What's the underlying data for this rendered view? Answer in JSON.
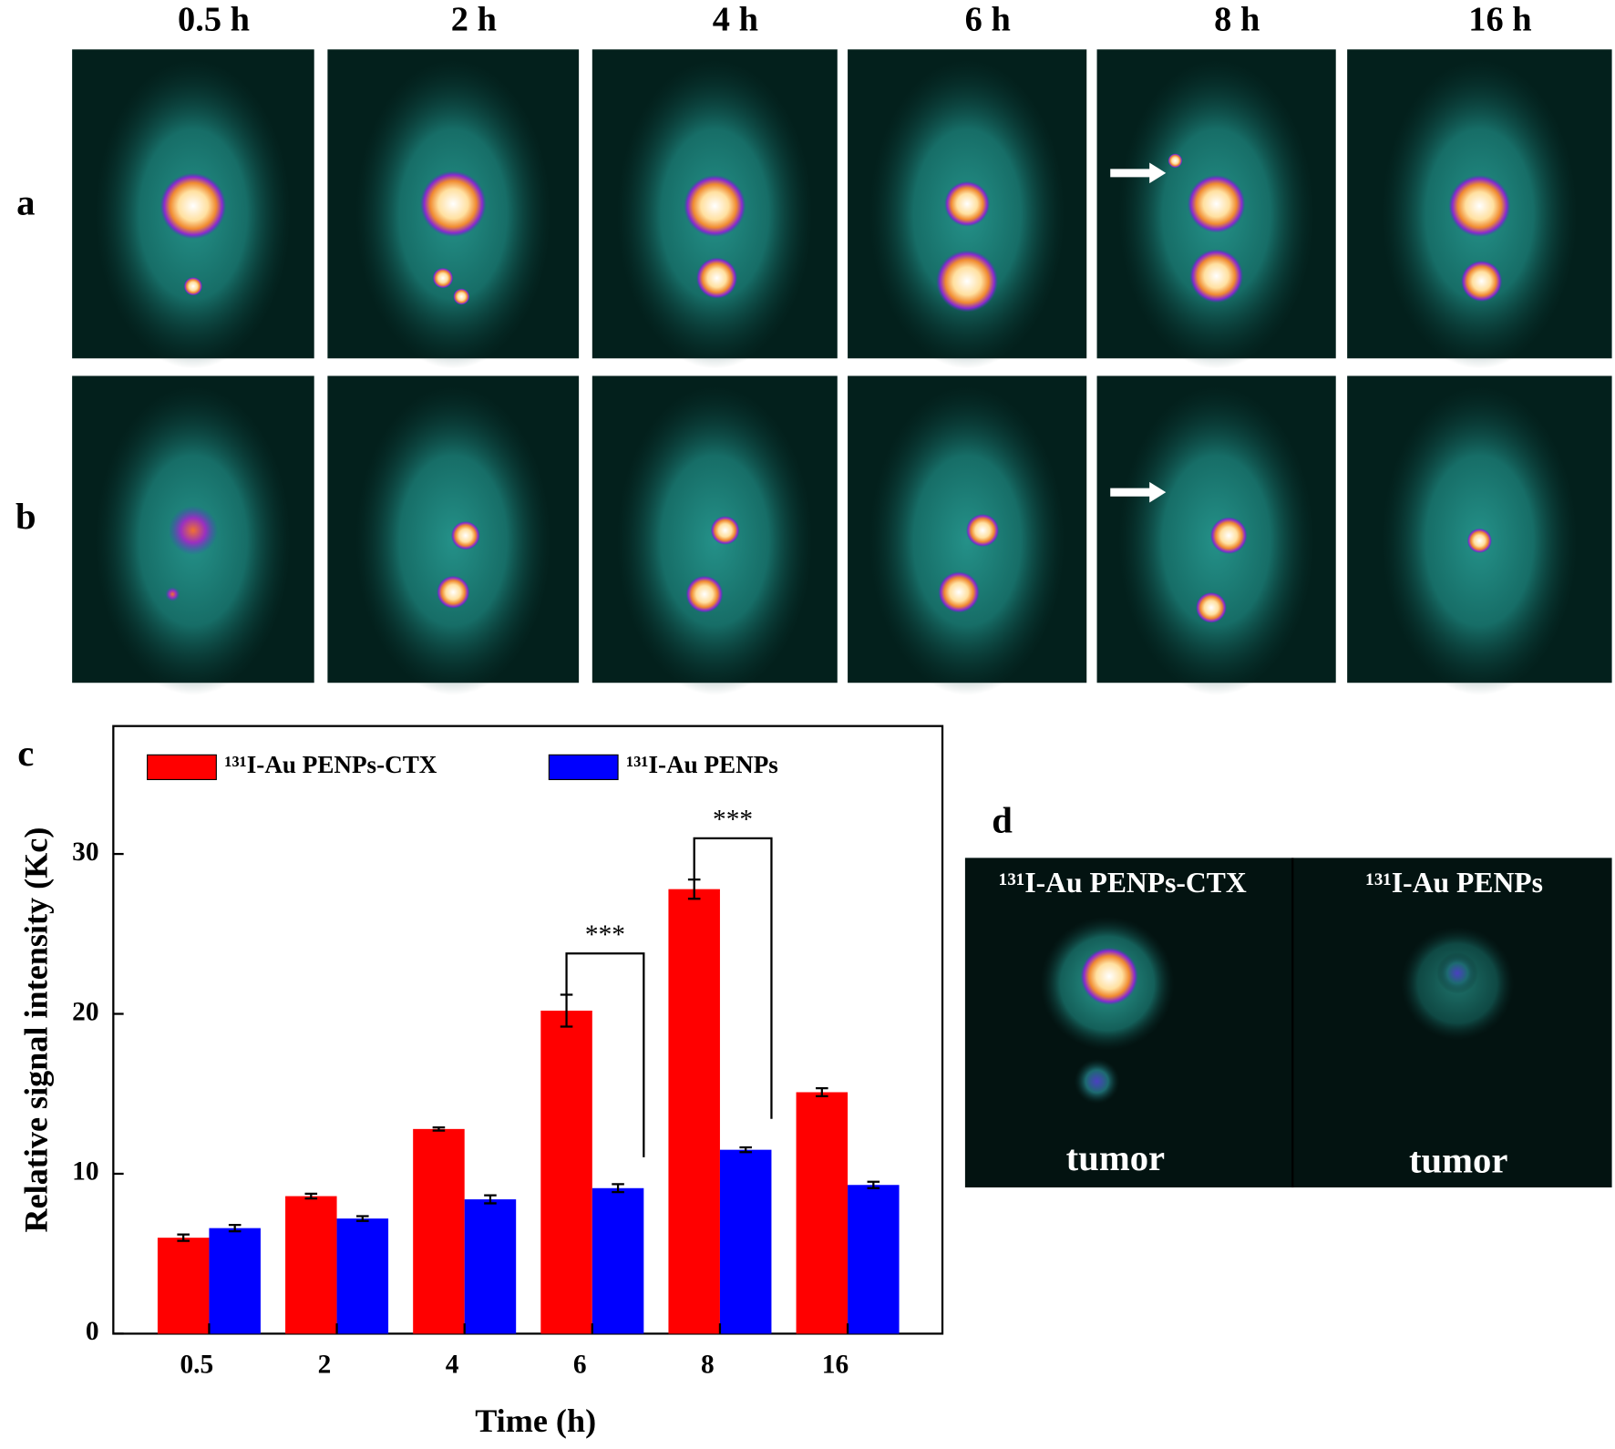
{
  "header": {
    "times": [
      "0.5 h",
      "2 h",
      "4 h",
      "6 h",
      "8 h",
      "16 h"
    ]
  },
  "panels": {
    "a": "a",
    "b": "b",
    "c": "c",
    "d": "d"
  },
  "panel_d": {
    "left_title": "¹³¹I-Au PENPs-CTX",
    "right_title": "¹³¹I-Au PENPs",
    "left_label": "tumor",
    "right_label": "tumor"
  },
  "chart_data": {
    "type": "bar",
    "x_label": "Time (h)",
    "y_label": "Relative signal intensity (Kc)",
    "categories": [
      "0.5",
      "2",
      "4",
      "6",
      "8",
      "16"
    ],
    "series": [
      {
        "name": "¹³¹I-Au PENPs-CTX",
        "color": "#ff0000",
        "values": [
          6.0,
          8.6,
          12.8,
          20.2,
          27.8,
          15.1
        ],
        "errors": [
          0.2,
          0.15,
          0.1,
          1.0,
          0.6,
          0.25
        ]
      },
      {
        "name": "¹³¹I-Au PENPs",
        "color": "#0000ff",
        "values": [
          6.6,
          7.2,
          8.4,
          9.1,
          11.5,
          9.3
        ],
        "errors": [
          0.2,
          0.15,
          0.25,
          0.25,
          0.15,
          0.2
        ]
      }
    ],
    "ylim": [
      0,
      38
    ],
    "yticks": [
      0,
      10,
      20,
      30
    ],
    "annotations": [
      "***",
      "***"
    ]
  }
}
